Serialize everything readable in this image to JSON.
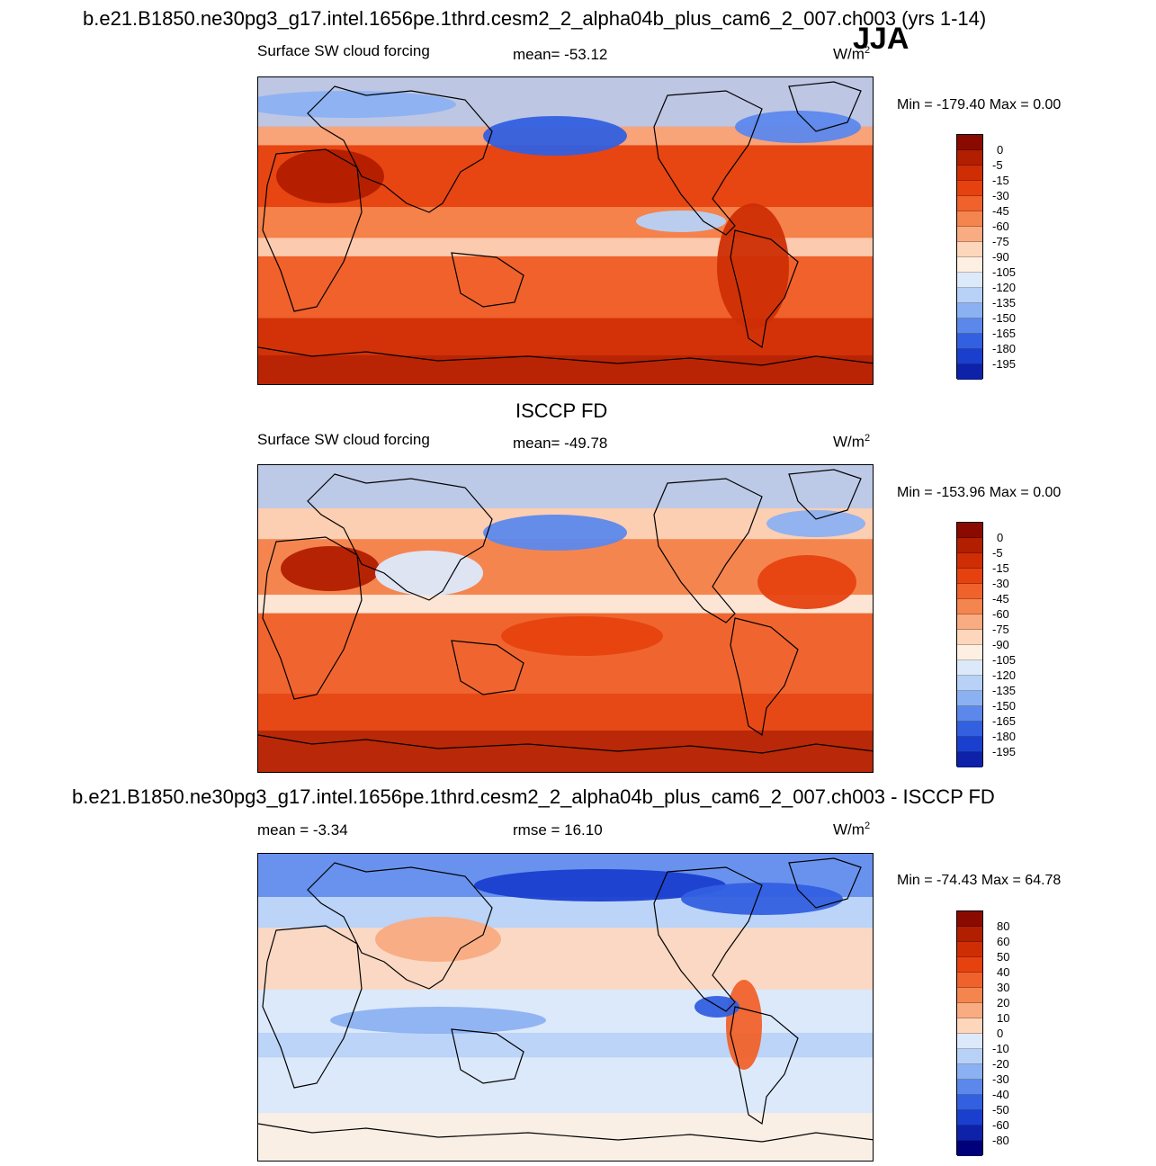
{
  "page_title": "b.e21.B1850.ne30pg3_g17.intel.1656pe.1thrd.cesm2_2_alpha04b_plus_cam6_2_007.ch003 (yrs 1-14)",
  "season": "JJA",
  "panels": [
    {
      "heading": "",
      "left_label": "Surface SW cloud forcing",
      "center_label": "mean= -53.12",
      "units_base": "W/m",
      "units_exp": "2",
      "minmax": "Min = -179.40 Max =   0.00",
      "colorbar": {
        "labels": [
          "0",
          "-5",
          "-15",
          "-30",
          "-45",
          "-60",
          "-75",
          "-90",
          "-105",
          "-120",
          "-135",
          "-150",
          "-165",
          "-180",
          "-195"
        ],
        "colors": [
          "#8b0a00",
          "#b21e00",
          "#cf2e05",
          "#e6420f",
          "#f0622b",
          "#f5854f",
          "#f9ab82",
          "#fdd6bc",
          "#fdf0e2",
          "#dce9fb",
          "#b7d1f7",
          "#8cb1f2",
          "#5c88ec",
          "#3360e0",
          "#1a3fcf",
          "#0d22a8"
        ]
      },
      "field": {
        "type": "filled contour map",
        "band_colors": [
          "#b21e00",
          "#cf2e05",
          "#e6420f",
          "#f0622b",
          "#f5854f",
          "#fdd6bc",
          "#b7d1f7",
          "#3360e0"
        ]
      }
    },
    {
      "heading": "ISCCP FD",
      "left_label": "Surface SW cloud forcing",
      "center_label": "mean= -49.78",
      "units_base": "W/m",
      "units_exp": "2",
      "minmax": "Min = -153.96 Max =   0.00",
      "colorbar": {
        "labels": [
          "0",
          "-5",
          "-15",
          "-30",
          "-45",
          "-60",
          "-75",
          "-90",
          "-105",
          "-120",
          "-135",
          "-150",
          "-165",
          "-180",
          "-195"
        ],
        "colors": [
          "#8b0a00",
          "#b21e00",
          "#cf2e05",
          "#e6420f",
          "#f0622b",
          "#f5854f",
          "#f9ab82",
          "#fdd6bc",
          "#fdf0e2",
          "#dce9fb",
          "#b7d1f7",
          "#8cb1f2",
          "#5c88ec",
          "#3360e0",
          "#1a3fcf",
          "#0d22a8"
        ]
      },
      "field": {
        "type": "filled contour map"
      }
    },
    {
      "heading": "b.e21.B1850.ne30pg3_g17.intel.1656pe.1thrd.cesm2_2_alpha04b_plus_cam6_2_007.ch003 - ISCCP FD",
      "left_label": "mean =  -3.34",
      "center_label": "rmse =  16.10",
      "units_base": "W/m",
      "units_exp": "2",
      "minmax": "Min = -74.43 Max =  64.78",
      "colorbar": {
        "labels": [
          "80",
          "60",
          "50",
          "40",
          "30",
          "20",
          "10",
          "0",
          "-10",
          "-20",
          "-30",
          "-40",
          "-50",
          "-60",
          "-80"
        ],
        "colors": [
          "#8b0a00",
          "#b21e00",
          "#cf2e05",
          "#e6420f",
          "#f0622b",
          "#f5854f",
          "#f9ab82",
          "#fdd6bc",
          "#dce9fb",
          "#b7d1f7",
          "#8cb1f2",
          "#5c88ec",
          "#3360e0",
          "#1a3fcf",
          "#0d22a8",
          "#00007a"
        ]
      },
      "field": {
        "type": "filled contour map"
      }
    }
  ]
}
